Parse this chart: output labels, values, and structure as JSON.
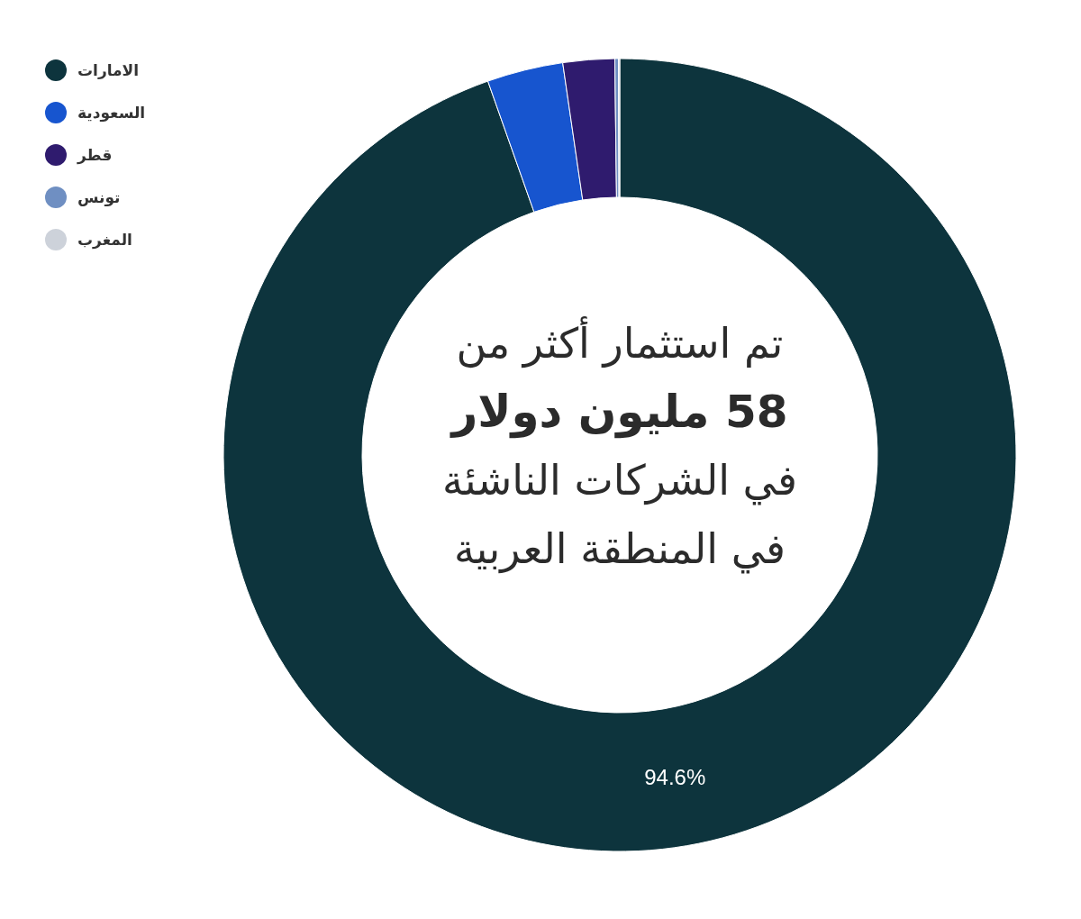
{
  "chart_data": {
    "type": "donut",
    "categories": [
      "الامارات",
      "السعودية",
      "قطر",
      "تونس",
      "المغرب"
    ],
    "values": [
      94.6,
      3.1,
      2.1,
      0.15,
      0.05
    ],
    "colors": [
      "#0d343d",
      "#1755cf",
      "#2f1b6e",
      "#6f8fc2",
      "#cdd2da"
    ],
    "value_labels": [
      "94.6%",
      null,
      null,
      null,
      null
    ],
    "legend": "top left",
    "annotations": [
      "تم استثمار أكثر من",
      "58 مليون دولار",
      "في الشركات الناشئة",
      "في المنطقة العربية"
    ]
  }
}
